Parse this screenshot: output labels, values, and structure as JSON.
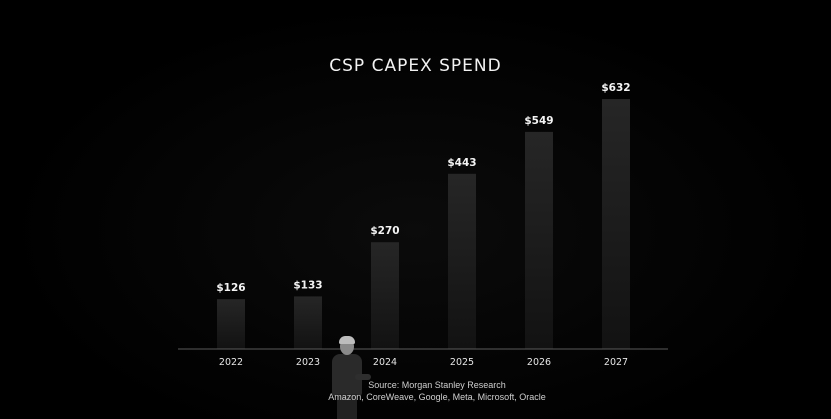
{
  "chart_data": {
    "type": "bar",
    "title": "CSP CAPEX SPEND",
    "categories": [
      "2022",
      "2023",
      "2024",
      "2025",
      "2026",
      "2027"
    ],
    "values": [
      126,
      133,
      270,
      443,
      549,
      632
    ],
    "value_labels": [
      "$126",
      "$133",
      "$270",
      "$443",
      "$549",
      "$632"
    ],
    "xlabel": "",
    "ylabel": "",
    "ylim": [
      0,
      660
    ],
    "grid": false,
    "legend": "none"
  },
  "source": {
    "line1": "Source: Morgan Stanley Research",
    "line2": "Amazon, CoreWeave, Google, Meta, Microsoft, Oracle"
  },
  "colors": {
    "background": "#000000",
    "bar_top": "#262626",
    "bar_bottom": "#141414",
    "baseline": "#5a5a5a",
    "text": "#f2f2f2"
  }
}
